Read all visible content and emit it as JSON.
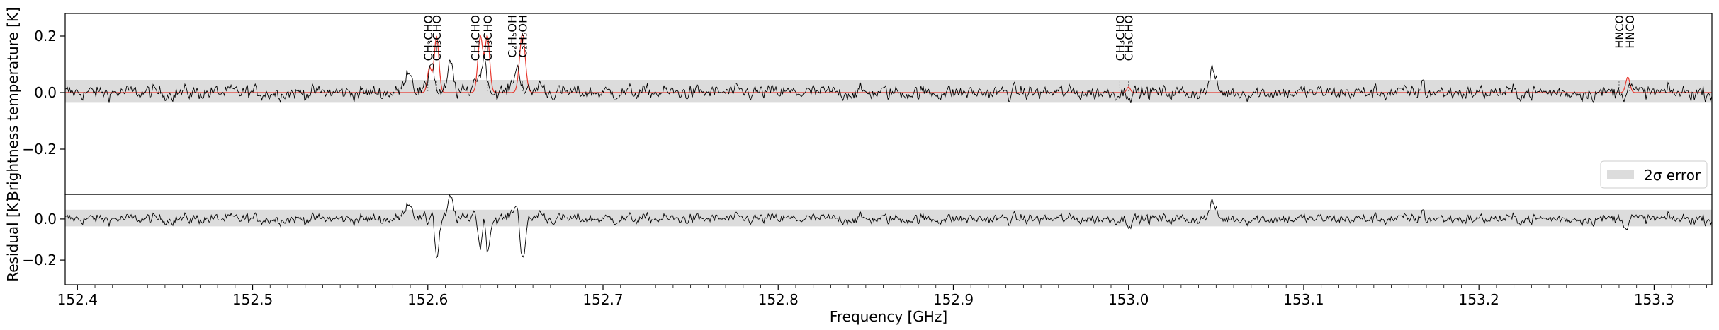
{
  "chart_data": {
    "type": "line",
    "xlabel": "Frequency [GHz]",
    "xlim": [
      152.393,
      153.333
    ],
    "x_ticks": [
      152.4,
      152.5,
      152.6,
      152.7,
      152.8,
      152.9,
      153.0,
      153.1,
      153.2,
      153.3
    ],
    "x_tick_labels": [
      "152.4",
      "152.5",
      "152.6",
      "152.7",
      "152.8",
      "152.9",
      "153.0",
      "153.1",
      "153.2",
      "153.3"
    ],
    "colors": {
      "observed": "#000000",
      "model": "#e8392f",
      "error_band": "#dcdcdc",
      "marker": "#555555"
    },
    "spectrum": {
      "ylabel": "Brightness temperature [K]",
      "ylim": [
        -0.36,
        0.28
      ],
      "y_ticks": [
        -0.2,
        0.0,
        0.2
      ],
      "y_tick_labels": [
        "−0.2",
        "0.0",
        "0.2"
      ],
      "noise_rms": 0.017,
      "error_band": [
        -0.036,
        0.045
      ],
      "legend": {
        "label": "2σ error",
        "position": "lower-right"
      },
      "observed_lines": [
        {
          "x": 152.589,
          "amp": 0.085,
          "width": 0.0022
        },
        {
          "x": 152.602,
          "amp": 0.12,
          "width": 0.0015
        },
        {
          "x": 152.613,
          "amp": 0.1,
          "width": 0.0015
        },
        {
          "x": 152.627,
          "amp": 0.05,
          "width": 0.0015
        },
        {
          "x": 152.632,
          "amp": 0.12,
          "width": 0.0018
        },
        {
          "x": 152.651,
          "amp": 0.085,
          "width": 0.0022
        },
        {
          "x": 152.664,
          "amp": 0.035,
          "width": 0.0015
        },
        {
          "x": 153.048,
          "amp": 0.075,
          "width": 0.0018
        },
        {
          "x": 153.168,
          "amp": 0.06,
          "width": 0.0006
        },
        {
          "x": 153.286,
          "amp": 0.03,
          "width": 0.0012
        }
      ],
      "model_lines": [
        {
          "x": 152.601,
          "amp": 0.09,
          "width": 0.0012
        },
        {
          "x": 152.605,
          "amp": 0.2,
          "width": 0.0013
        },
        {
          "x": 152.63,
          "amp": 0.2,
          "width": 0.0014
        },
        {
          "x": 152.634,
          "amp": 0.2,
          "width": 0.0013
        },
        {
          "x": 152.654,
          "amp": 0.21,
          "width": 0.0016
        },
        {
          "x": 153.0,
          "amp": 0.02,
          "width": 0.001
        },
        {
          "x": 153.285,
          "amp": 0.055,
          "width": 0.0012
        }
      ]
    },
    "residual": {
      "ylabel": "Residual [K]",
      "ylim": [
        -0.32,
        0.12
      ],
      "y_ticks": [
        -0.2,
        0.0
      ],
      "y_tick_labels": [
        "−0.2",
        "0.0"
      ],
      "error_band": [
        -0.036,
        0.045
      ]
    },
    "annotations": [
      {
        "label": "CH₃CHO",
        "x": 152.6
      },
      {
        "label": "CH₃CHO",
        "x": 152.605
      },
      {
        "label": "CH₃CHO",
        "x": 152.627
      },
      {
        "label": "CH₃CHO",
        "x": 152.634
      },
      {
        "label": "C₂H₅OH",
        "x": 152.648
      },
      {
        "label": "C₂H₅OH",
        "x": 152.654
      },
      {
        "label": "CH₃CHO",
        "x": 152.995
      },
      {
        "label": "CH₃CHO",
        "x": 153.0
      },
      {
        "label": "HNCO",
        "x": 153.28
      },
      {
        "label": "HNCO",
        "x": 153.286
      }
    ]
  }
}
